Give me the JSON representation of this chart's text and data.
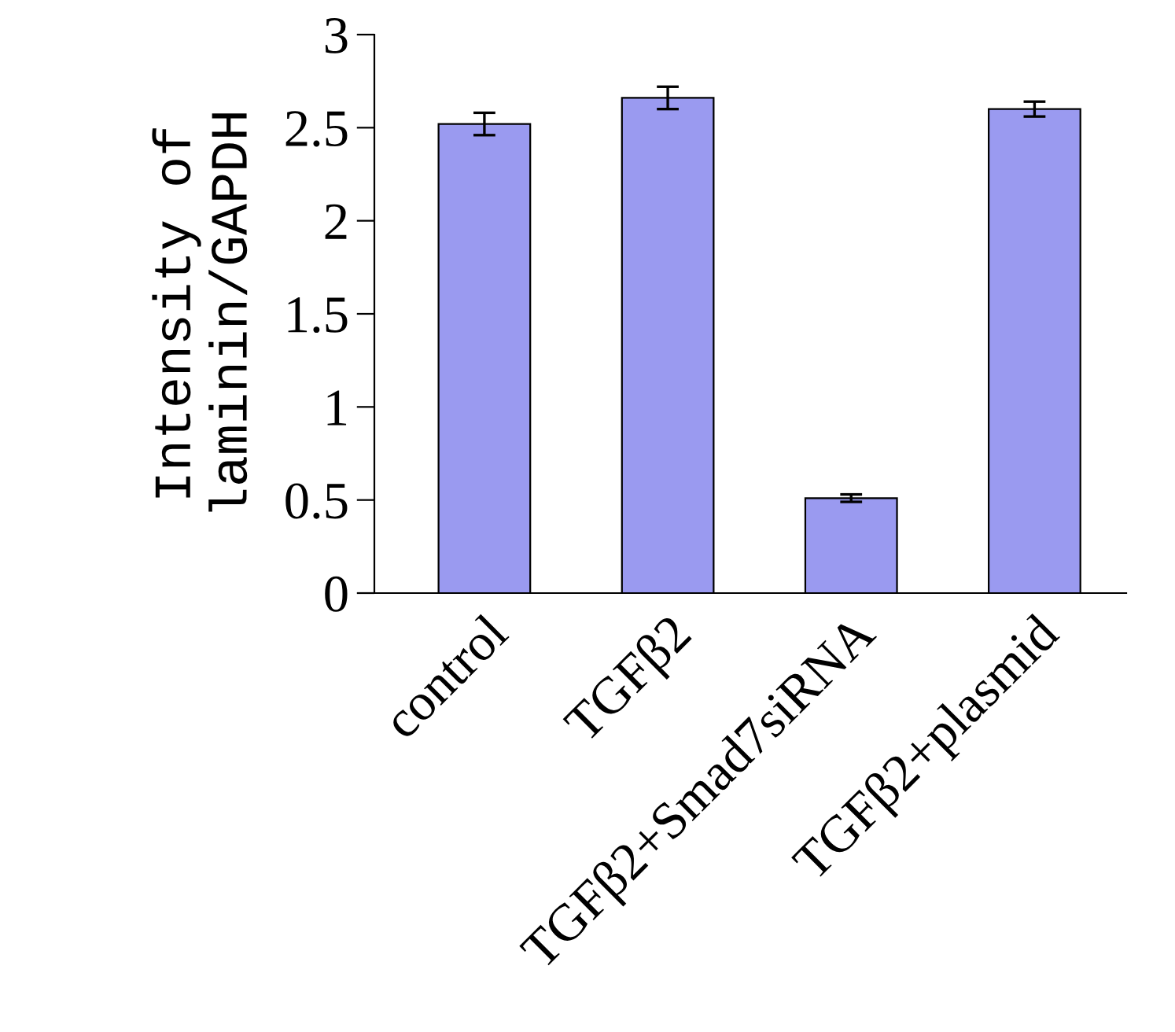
{
  "chart_data": {
    "type": "bar",
    "ylabel": "Intensity of\nlaminin/GAPDH",
    "categories": [
      "control",
      "TGFβ2",
      "TGFβ2+Smad7siRNA",
      "TGFβ2+plasmid"
    ],
    "values": [
      2.52,
      2.66,
      0.51,
      2.6
    ],
    "errors": [
      0.06,
      0.06,
      0.02,
      0.04
    ],
    "color": "#9a9af0",
    "ylim": [
      0,
      3
    ],
    "yticks": [
      0,
      0.5,
      1,
      1.5,
      2,
      2.5,
      3
    ],
    "grid": false
  }
}
